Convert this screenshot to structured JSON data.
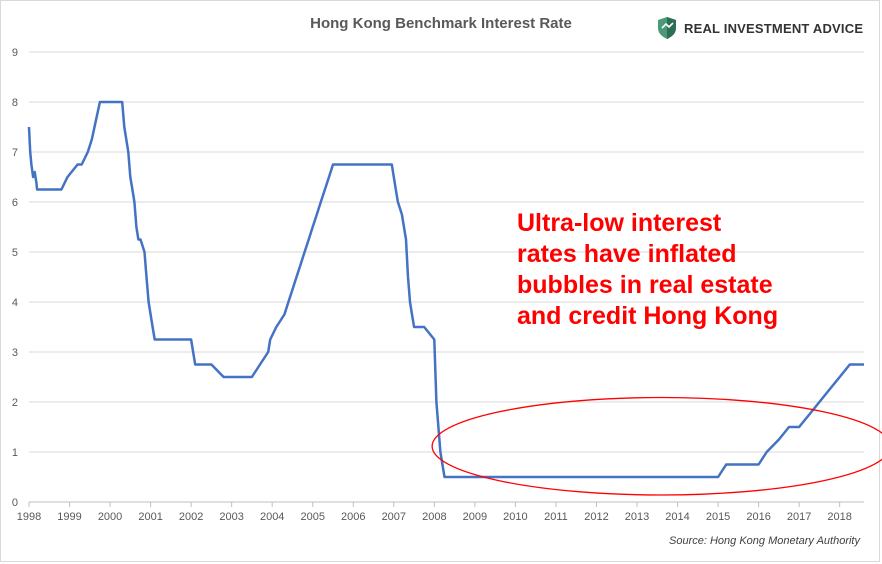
{
  "logo": {
    "icon": "shield-icon",
    "text": "REAL INVESTMENT ADVICE"
  },
  "annotation": {
    "lines": [
      "Ultra-low interest",
      "rates have inflated",
      "bubbles in real estate",
      "and credit Hong Kong"
    ],
    "color": "#ff0000"
  },
  "source": "Source: Hong Kong Monetary Authority",
  "chart_data": {
    "type": "line",
    "title": "Hong Kong Benchmark Interest Rate",
    "xlabel": "",
    "ylabel": "",
    "xlim": [
      1998,
      2018.6
    ],
    "ylim": [
      0,
      9
    ],
    "grid": true,
    "legend": "none",
    "line_color": "#4472c4",
    "x_ticks": [
      "1998",
      "1999",
      "2000",
      "2001",
      "2002",
      "2003",
      "2004",
      "2005",
      "2006",
      "2007",
      "2008",
      "2009",
      "2010",
      "2011",
      "2012",
      "2013",
      "2014",
      "2015",
      "2016",
      "2017",
      "2018"
    ],
    "y_ticks": [
      "0",
      "1",
      "2",
      "3",
      "4",
      "5",
      "6",
      "7",
      "8",
      "9"
    ],
    "series": [
      {
        "x": [
          1998.0,
          1998.03,
          1998.06,
          1998.1,
          1998.14,
          1998.18,
          1998.2,
          1998.6,
          1998.8,
          1998.95,
          1999.2,
          1999.3,
          1999.45,
          1999.55,
          1999.75,
          2000.3,
          2000.35,
          2000.4,
          2000.45,
          2000.5,
          2000.55,
          2000.6,
          2000.65,
          2000.7,
          2000.75,
          2000.85,
          2000.9,
          2000.95,
          2001.0,
          2001.05,
          2001.1,
          2001.15,
          2001.2,
          2001.25,
          2001.3,
          2001.6,
          2002.0,
          2002.1,
          2002.5,
          2002.8,
          2003.2,
          2003.5,
          2003.7,
          2003.9,
          2003.95,
          2004.1,
          2004.3,
          2004.4,
          2004.5,
          2004.6,
          2004.7,
          2004.8,
          2004.9,
          2005.0,
          2005.1,
          2005.2,
          2005.3,
          2005.4,
          2005.5,
          2005.6,
          2005.7,
          2005.8,
          2005.9,
          2006.0,
          2006.5,
          2006.95,
          2007.0,
          2007.05,
          2007.1,
          2007.2,
          2007.3,
          2007.35,
          2007.4,
          2007.45,
          2007.5,
          2007.55,
          2007.65,
          2007.75,
          2008.0,
          2008.05,
          2008.1,
          2008.15,
          2008.25,
          2008.4,
          2009.0,
          2010.0,
          2011.0,
          2012.0,
          2013.0,
          2014.0,
          2015.0,
          2015.2,
          2015.5,
          2016.0,
          2016.2,
          2016.5,
          2016.75,
          2017.0,
          2017.25,
          2017.5,
          2017.75,
          2018.0,
          2018.25,
          2018.5,
          2018.6
        ],
        "y": [
          7.5,
          7.0,
          6.75,
          6.5,
          6.6,
          6.4,
          6.25,
          6.25,
          6.25,
          6.5,
          6.75,
          6.75,
          7.0,
          7.25,
          8.0,
          8.0,
          7.5,
          7.25,
          7.0,
          6.5,
          6.25,
          6.0,
          5.5,
          5.25,
          5.25,
          5.0,
          4.5,
          4.0,
          3.75,
          3.5,
          3.25,
          3.25,
          3.25,
          3.25,
          3.25,
          3.25,
          3.25,
          2.75,
          2.75,
          2.5,
          2.5,
          2.5,
          2.75,
          3.0,
          3.25,
          3.5,
          3.75,
          4.0,
          4.25,
          4.5,
          4.75,
          5.0,
          5.25,
          5.5,
          5.75,
          6.0,
          6.25,
          6.5,
          6.75,
          6.75,
          6.75,
          6.75,
          6.75,
          6.75,
          6.75,
          6.75,
          6.5,
          6.25,
          6.0,
          5.75,
          5.25,
          4.5,
          4.0,
          3.75,
          3.5,
          3.5,
          3.5,
          3.5,
          3.25,
          2.0,
          1.5,
          1.0,
          0.5,
          0.5,
          0.5,
          0.5,
          0.5,
          0.5,
          0.5,
          0.5,
          0.5,
          0.75,
          0.75,
          0.75,
          1.0,
          1.25,
          1.5,
          1.5,
          1.75,
          2.0,
          2.25,
          2.5,
          2.75,
          2.75,
          2.75
        ]
      }
    ],
    "ellipse_color": "#ff0000"
  }
}
